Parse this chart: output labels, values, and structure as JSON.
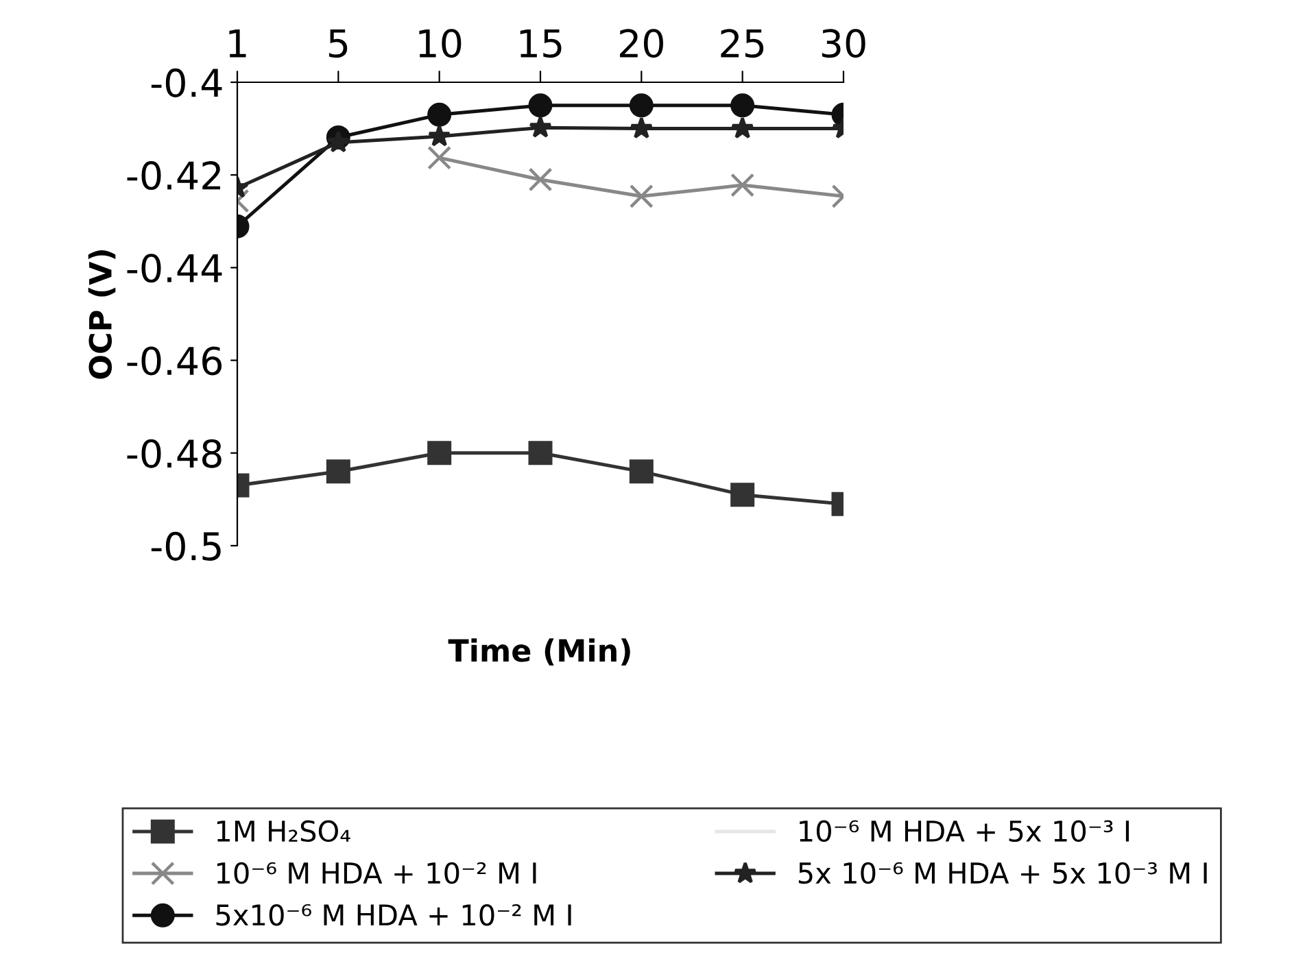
{
  "chart_data": {
    "type": "line",
    "xlabel": "Time (Min)",
    "ylabel": "OCP (V)",
    "categories": [
      "1",
      "5",
      "10",
      "15",
      "20",
      "25",
      "30"
    ],
    "ylim": [
      -0.5,
      -0.4
    ],
    "yticks": [
      -0.5,
      -0.48,
      -0.46,
      -0.44,
      -0.42,
      -0.4
    ],
    "grid": false,
    "legend": "bottom",
    "series": [
      {
        "name": "1M H₂SO₄",
        "color": "#333333",
        "marker": "square",
        "values": [
          -0.487,
          -0.484,
          -0.48,
          -0.48,
          -0.484,
          -0.489,
          -0.491
        ]
      },
      {
        "name": "10⁻⁶ M HDA + 10⁻² M I",
        "color": "#888888",
        "marker": "cross",
        "values": [
          -0.4256,
          null,
          -0.4163,
          -0.421,
          -0.4246,
          -0.4222,
          -0.4246
        ]
      },
      {
        "name": "5x10⁻⁶ M HDA + 10⁻² M I",
        "color": "#111111",
        "marker": "circle",
        "values": [
          -0.4311,
          -0.4119,
          -0.407,
          -0.405,
          -0.405,
          -0.405,
          -0.407
        ]
      },
      {
        "name": "10⁻⁶ M HDA + 5x 10⁻³ I",
        "color": "#e6e6e6",
        "marker": "none",
        "values": [
          null,
          null,
          null,
          null,
          null,
          null,
          null
        ]
      },
      {
        "name": "5x 10⁻⁶ M HDA + 5x 10⁻³ M I",
        "color": "#222222",
        "marker": "star",
        "values": [
          -0.4228,
          -0.413,
          -0.4117,
          -0.4098,
          -0.41,
          -0.41,
          -0.41
        ]
      }
    ]
  }
}
